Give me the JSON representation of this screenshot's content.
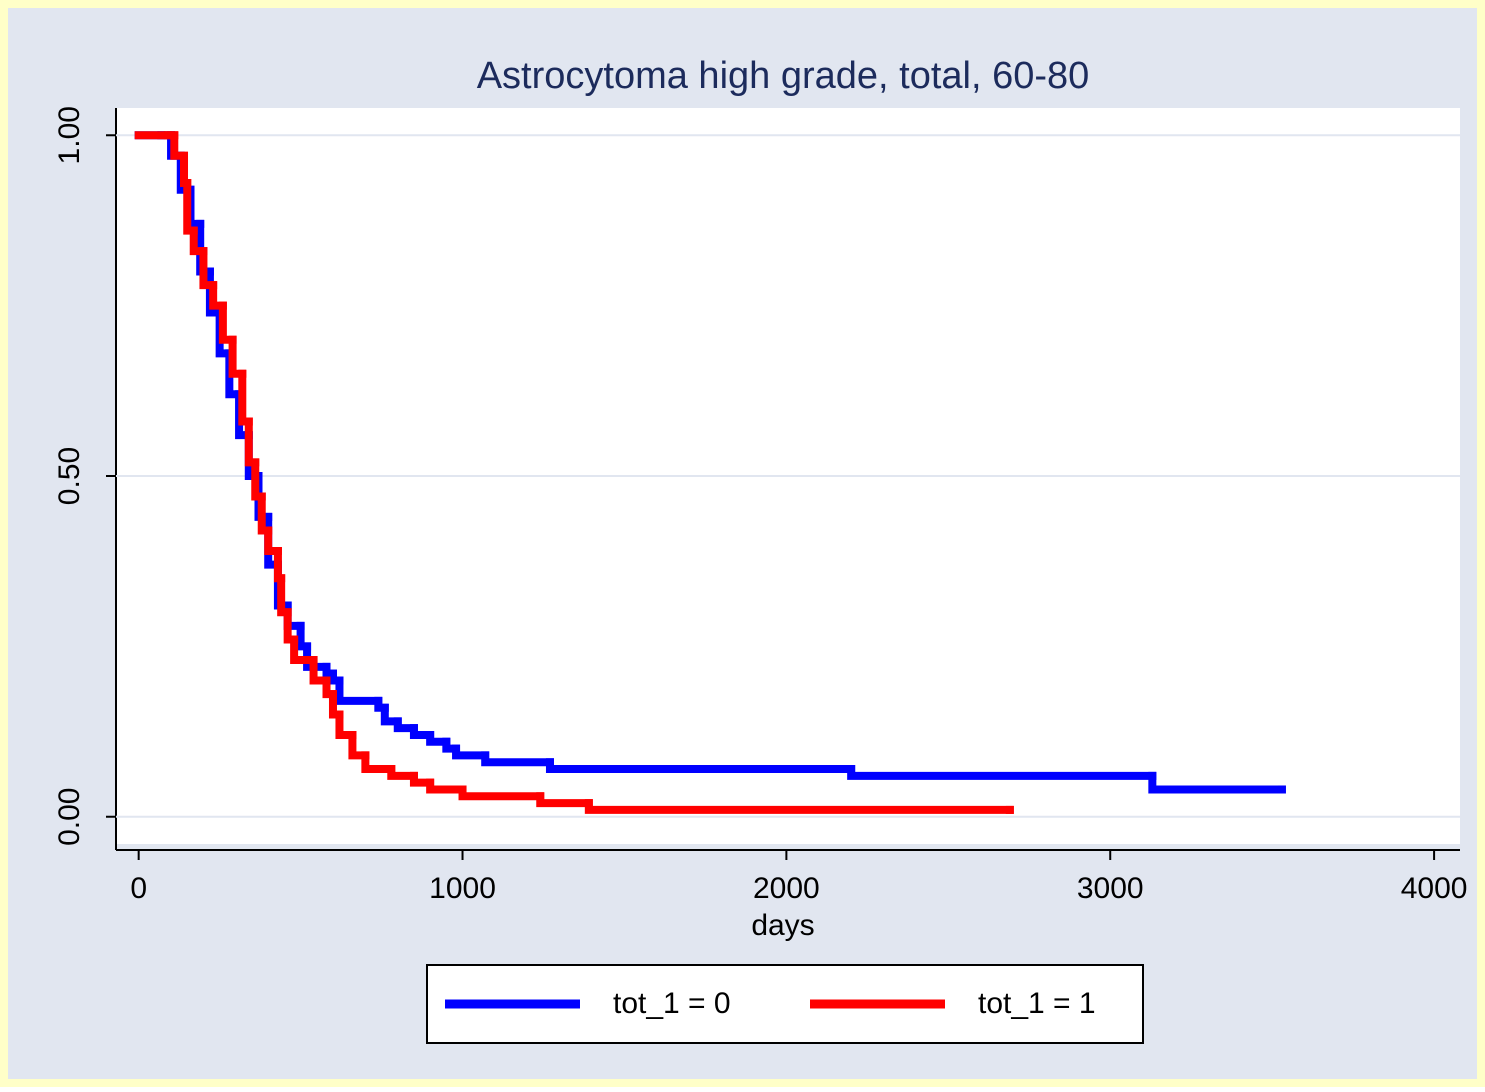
{
  "chart_data": {
    "type": "line",
    "step": "post",
    "title": "Astrocytoma high grade, total, 60-80",
    "x_label": "days",
    "xlim": [
      -70,
      4080
    ],
    "ylim": [
      -0.04,
      1.04
    ],
    "xticks": [
      0,
      1000,
      2000,
      3000,
      4000
    ],
    "yticks": [
      {
        "value": 0,
        "label": "0.00"
      },
      {
        "value": 0.5,
        "label": "0.50"
      },
      {
        "value": 1,
        "label": "1.00"
      }
    ],
    "grid": true,
    "legend": "bottom",
    "series": [
      {
        "name": "tot_1 = 0",
        "color": "#0000ff",
        "x": [
          0,
          70,
          100,
          130,
          160,
          190,
          220,
          250,
          280,
          310,
          340,
          370,
          400,
          430,
          460,
          500,
          520,
          580,
          600,
          620,
          740,
          760,
          800,
          850,
          900,
          950,
          980,
          1070,
          1270,
          2200,
          3130,
          3530
        ],
        "values": [
          1.0,
          1.0,
          0.97,
          0.92,
          0.87,
          0.8,
          0.74,
          0.68,
          0.62,
          0.56,
          0.5,
          0.44,
          0.37,
          0.31,
          0.28,
          0.25,
          0.22,
          0.21,
          0.2,
          0.17,
          0.16,
          0.14,
          0.13,
          0.12,
          0.11,
          0.1,
          0.09,
          0.08,
          0.07,
          0.06,
          0.04,
          0.04
        ]
      },
      {
        "name": "tot_1 = 1",
        "color": "#ff0000",
        "x": [
          0,
          90,
          110,
          140,
          150,
          170,
          200,
          230,
          260,
          290,
          320,
          340,
          360,
          380,
          400,
          430,
          440,
          460,
          480,
          540,
          580,
          600,
          620,
          660,
          700,
          780,
          850,
          900,
          1000,
          1240,
          1390,
          2690
        ],
        "values": [
          1.0,
          1.0,
          0.97,
          0.93,
          0.86,
          0.83,
          0.78,
          0.75,
          0.7,
          0.65,
          0.58,
          0.52,
          0.47,
          0.42,
          0.39,
          0.35,
          0.3,
          0.26,
          0.23,
          0.2,
          0.18,
          0.15,
          0.12,
          0.09,
          0.07,
          0.06,
          0.05,
          0.04,
          0.03,
          0.02,
          0.01,
          0.01
        ]
      }
    ]
  }
}
